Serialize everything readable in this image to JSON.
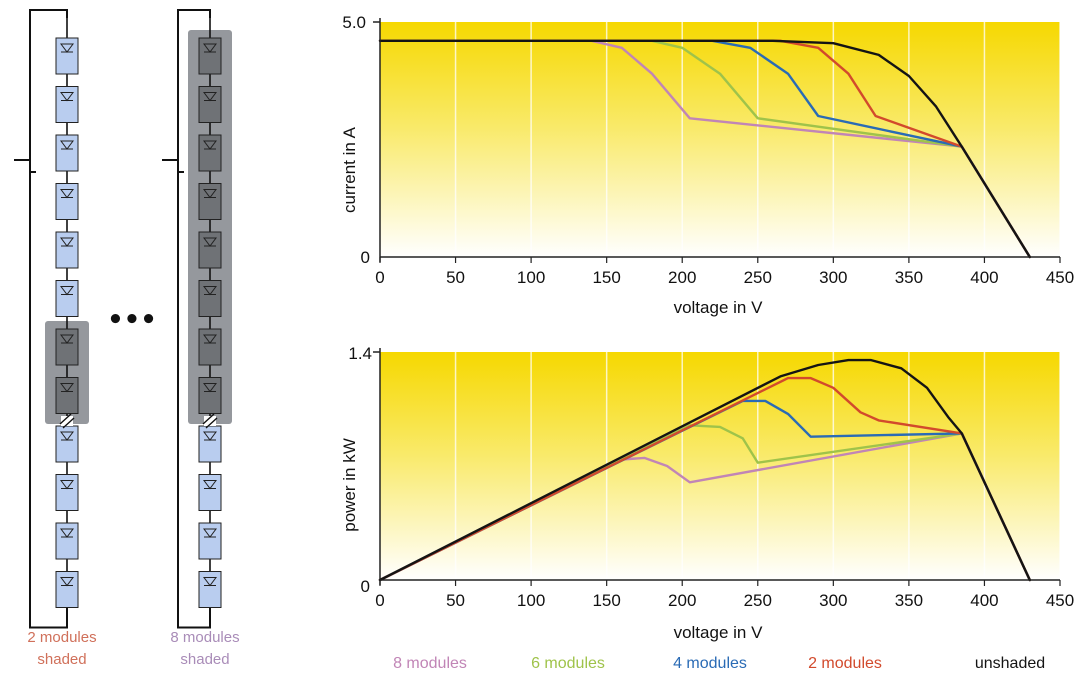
{
  "left": {
    "captions": [
      {
        "line1": "2 modules",
        "line2": "shaded",
        "color": "#d0705a"
      },
      {
        "line1": "8 modules",
        "line2": "shaded",
        "color": "#a98cb8"
      }
    ],
    "ellipsis": "•••",
    "module_count": 12,
    "shaded": [
      2,
      8
    ],
    "colors": {
      "module_fill": "#b9cdef",
      "shade": "#8a8d92",
      "shaded_module": "#6f7276"
    }
  },
  "chart_data": [
    {
      "type": "line",
      "title": "",
      "xlabel": "voltage in V",
      "ylabel": "current in A",
      "xlim": [
        0,
        450
      ],
      "ylim": [
        0,
        5
      ],
      "xticks": [
        "0",
        "50",
        "100",
        "150",
        "200",
        "250",
        "300",
        "350",
        "400",
        "450"
      ],
      "yticks": [
        "0",
        "5.0"
      ],
      "grid": "vertical",
      "series": [
        {
          "name": "8 modules",
          "color": "#c185b6",
          "points": [
            [
              0,
              4.6
            ],
            [
              140,
              4.6
            ],
            [
              160,
              4.45
            ],
            [
              180,
              3.9
            ],
            [
              205,
              2.95
            ],
            [
              385,
              2.35
            ],
            [
              430,
              0
            ]
          ]
        },
        {
          "name": "6 modules",
          "color": "#9fc34a",
          "points": [
            [
              0,
              4.6
            ],
            [
              180,
              4.6
            ],
            [
              200,
              4.45
            ],
            [
              225,
              3.9
            ],
            [
              250,
              2.95
            ],
            [
              385,
              2.35
            ],
            [
              430,
              0
            ]
          ]
        },
        {
          "name": "4 modules",
          "color": "#2a6bb5",
          "points": [
            [
              0,
              4.6
            ],
            [
              220,
              4.6
            ],
            [
              245,
              4.45
            ],
            [
              270,
              3.9
            ],
            [
              290,
              3.0
            ],
            [
              385,
              2.35
            ],
            [
              430,
              0
            ]
          ]
        },
        {
          "name": "2 modules",
          "color": "#d24a2c",
          "points": [
            [
              0,
              4.6
            ],
            [
              265,
              4.6
            ],
            [
              290,
              4.45
            ],
            [
              310,
              3.9
            ],
            [
              328,
              3.0
            ],
            [
              385,
              2.35
            ],
            [
              430,
              0
            ]
          ]
        },
        {
          "name": "unshaded",
          "color": "#141414",
          "points": [
            [
              0,
              4.6
            ],
            [
              260,
              4.6
            ],
            [
              300,
              4.55
            ],
            [
              330,
              4.3
            ],
            [
              350,
              3.85
            ],
            [
              368,
              3.2
            ],
            [
              380,
              2.6
            ],
            [
              385,
              2.35
            ],
            [
              430,
              0
            ]
          ]
        }
      ]
    },
    {
      "type": "line",
      "title": "",
      "xlabel": "voltage in V",
      "ylabel": "power in kW",
      "xlim": [
        0,
        450
      ],
      "ylim": [
        0,
        1.4
      ],
      "xticks": [
        "0",
        "50",
        "100",
        "150",
        "200",
        "250",
        "300",
        "350",
        "400",
        "450"
      ],
      "yticks": [
        "0",
        "1.4"
      ],
      "grid": "vertical",
      "series": [
        {
          "name": "8 modules",
          "color": "#c185b6",
          "points": [
            [
              0,
              0
            ],
            [
              160,
              0.74
            ],
            [
              175,
              0.75
            ],
            [
              190,
              0.7
            ],
            [
              205,
              0.6
            ],
            [
              385,
              0.9
            ],
            [
              430,
              0
            ]
          ]
        },
        {
          "name": "6 modules",
          "color": "#9fc34a",
          "points": [
            [
              0,
              0
            ],
            [
              205,
              0.95
            ],
            [
              225,
              0.94
            ],
            [
              240,
              0.87
            ],
            [
              250,
              0.72
            ],
            [
              385,
              0.9
            ],
            [
              430,
              0
            ]
          ]
        },
        {
          "name": "4 modules",
          "color": "#2a6bb5",
          "points": [
            [
              0,
              0
            ],
            [
              240,
              1.1
            ],
            [
              255,
              1.1
            ],
            [
              270,
              1.02
            ],
            [
              285,
              0.88
            ],
            [
              385,
              0.9
            ],
            [
              430,
              0
            ]
          ]
        },
        {
          "name": "2 modules",
          "color": "#d24a2c",
          "points": [
            [
              0,
              0
            ],
            [
              270,
              1.24
            ],
            [
              285,
              1.24
            ],
            [
              300,
              1.18
            ],
            [
              318,
              1.03
            ],
            [
              330,
              0.98
            ],
            [
              385,
              0.9
            ],
            [
              430,
              0
            ]
          ]
        },
        {
          "name": "unshaded",
          "color": "#141414",
          "points": [
            [
              0,
              0
            ],
            [
              265,
              1.25
            ],
            [
              290,
              1.32
            ],
            [
              310,
              1.35
            ],
            [
              325,
              1.35
            ],
            [
              345,
              1.3
            ],
            [
              362,
              1.18
            ],
            [
              376,
              1.0
            ],
            [
              385,
              0.9
            ],
            [
              430,
              0
            ]
          ]
        }
      ]
    }
  ]
}
